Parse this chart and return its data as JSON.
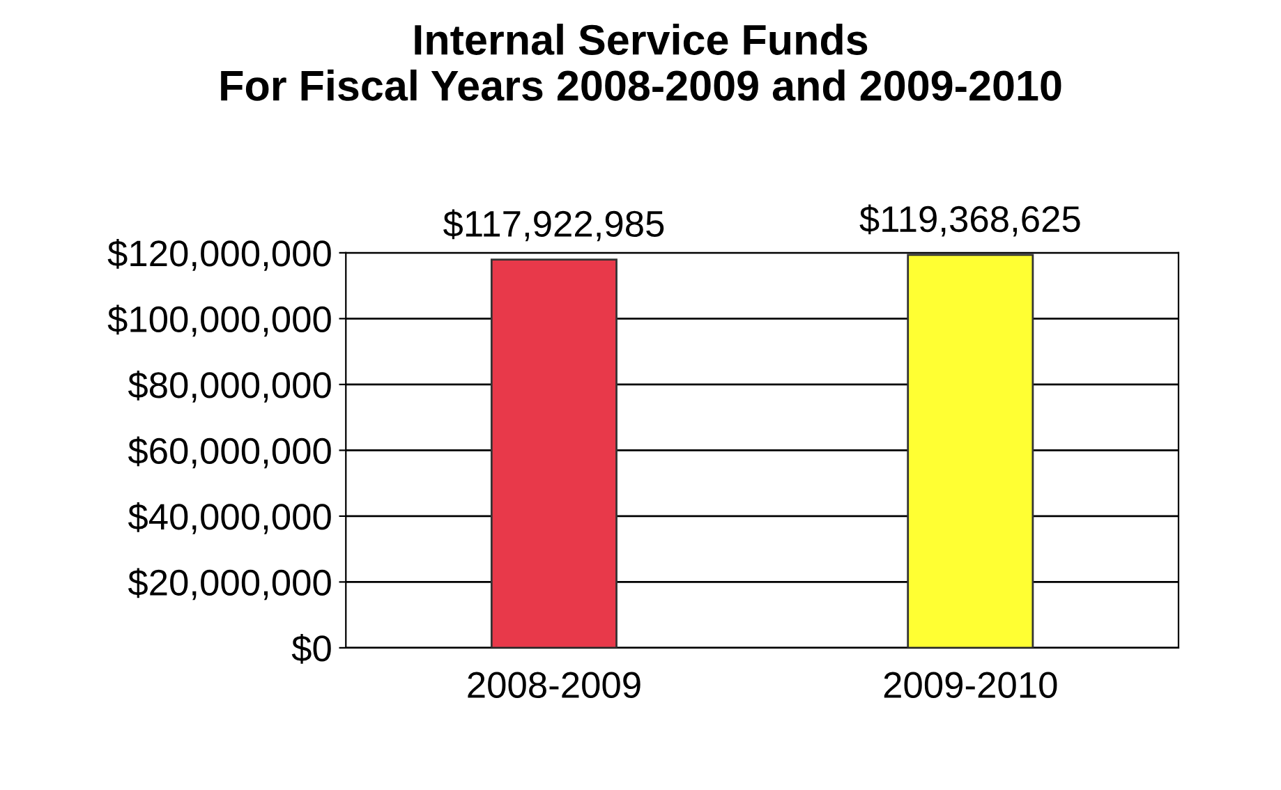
{
  "chart_data": {
    "type": "bar",
    "title": "Internal Service Funds\nFor Fiscal Years 2008-2009 and 2009-2010",
    "categories": [
      "2008-2009",
      "2009-2010"
    ],
    "values": [
      117922985,
      119368625
    ],
    "colors": [
      "#e8394a",
      "#ffff33"
    ],
    "value_labels": [
      "$117,922,985",
      "$119,368,625"
    ],
    "ylim": [
      0,
      120000000
    ],
    "yticks": [
      {
        "value": 0,
        "label": "$0"
      },
      {
        "value": 20000000,
        "label": "$20,000,000"
      },
      {
        "value": 40000000,
        "label": "$40,000,000"
      },
      {
        "value": 60000000,
        "label": "$60,000,000"
      },
      {
        "value": 80000000,
        "label": "$80,000,000"
      },
      {
        "value": 100000000,
        "label": "$100,000,000"
      },
      {
        "value": 120000000,
        "label": "$120,000,000"
      }
    ],
    "grid": "y"
  }
}
